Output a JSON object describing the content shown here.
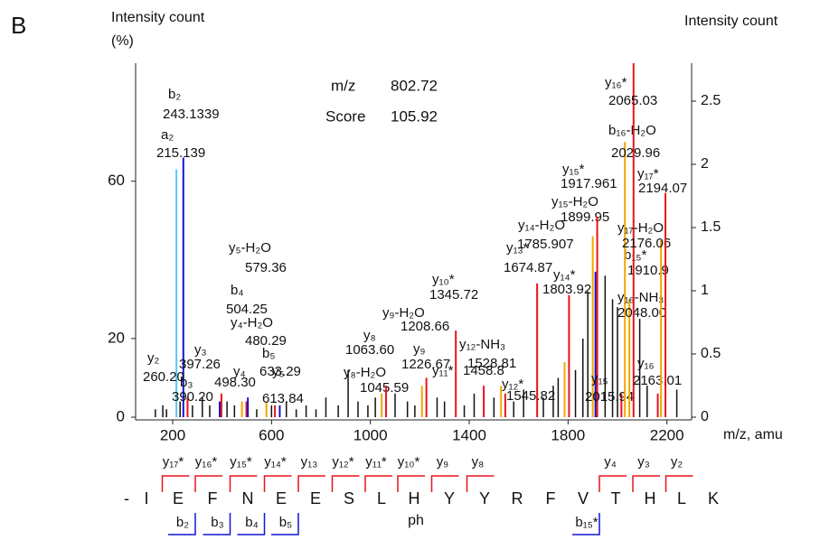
{
  "panel": "B",
  "chart_data": {
    "type": "stem",
    "ylabel": [
      "Intensity count",
      "(%)"
    ],
    "y2label": "Intensity count",
    "xlabel": "m/z, amu",
    "xlim": [
      50,
      2300
    ],
    "xticks": [
      200,
      600,
      1000,
      1400,
      1800,
      2200
    ],
    "ylim": [
      0,
      90
    ],
    "yticks": [
      0,
      20,
      60
    ],
    "y2lim": [
      0,
      2.8
    ],
    "y2ticks": [
      0,
      0.5,
      1,
      1.5,
      2,
      2.5
    ],
    "precursor": {
      "mz_label": "m/z",
      "mz": 802.72,
      "score_label": "Score",
      "score": 105.92
    },
    "peaks": [
      {
        "ion": "a₂",
        "mz": 215.139,
        "intensity": 63,
        "color": "#5ac8f0"
      },
      {
        "ion": "b₂",
        "mz": 243.1339,
        "intensity": 66,
        "color": "#1414d4"
      },
      {
        "ion": "y₂",
        "mz": {
          "value": 260.2,
          "label": "260.20"
        },
        "intensity": 5,
        "color": "#e8141b"
      },
      {
        "ion": "b₃",
        "mz": {
          "value": 390.2,
          "label": "390.20"
        },
        "intensity": 4,
        "color": "#1414d4"
      },
      {
        "ion": "y₃",
        "mz": 397.26,
        "intensity": 6,
        "color": "#e8141b"
      },
      {
        "ion": "y₄-H₂O",
        "mz": 480.29,
        "intensity": 4,
        "color": "#f0a800"
      },
      {
        "ion": "y₄",
        "mz": {
          "value": 498.3,
          "label": "498.30"
        },
        "intensity": 4,
        "color": "#e8141b"
      },
      {
        "ion": "b₄",
        "mz": 504.25,
        "intensity": 5,
        "color": "#1414d4"
      },
      {
        "ion": "y₅-H₂O",
        "mz": 579.36,
        "intensity": 4,
        "color": "#f0a800"
      },
      {
        "ion": "y₅",
        "mz": 613.84,
        "intensity": 3,
        "color": "#e8141b"
      },
      {
        "ion": "b₅",
        "mz": 633.29,
        "intensity": 3,
        "color": "#1414d4"
      },
      {
        "ion": "y₈-H₂O",
        "mz": 1045.59,
        "intensity": 6,
        "color": "#f0a800"
      },
      {
        "ion": "y₈",
        "mz": {
          "value": 1063.6,
          "label": "1063.60"
        },
        "intensity": 8,
        "color": "#e8141b"
      },
      {
        "ion": "y₉-H₂O",
        "mz": 1208.66,
        "intensity": 8,
        "color": "#f0a800"
      },
      {
        "ion": "y₉",
        "mz": 1226.67,
        "intensity": 10,
        "color": "#e8141b"
      },
      {
        "ion": "y₁₀*",
        "mz": 1345.72,
        "intensity": 22,
        "color": "#e8141b"
      },
      {
        "ion": "y₁₁*",
        "mz": 1458.8,
        "intensity": 8,
        "color": "#e8141b"
      },
      {
        "ion": "y₁₂-NH₃",
        "mz": 1528.81,
        "intensity": 8,
        "color": "#f0a800"
      },
      {
        "ion": "y₁₂*",
        "mz": 1545.82,
        "intensity": 6,
        "color": "#e8141b"
      },
      {
        "ion": "y₁₃*",
        "mz": 1674.87,
        "intensity": 34,
        "color": "#e8141b"
      },
      {
        "ion": "y₁₄-H₂O",
        "mz": 1785.907,
        "intensity": 14,
        "color": "#f0a800"
      },
      {
        "ion": "y₁₄*",
        "mz": 1803.92,
        "intensity": 31,
        "color": "#e8141b"
      },
      {
        "ion": "y₁₅-H₂O",
        "mz": 1899.95,
        "intensity": 46,
        "color": "#f0a800"
      },
      {
        "ion": "b₁₅*",
        "mz": 1910.9,
        "intensity": 37,
        "color": "#1414d4"
      },
      {
        "ion": "y₁₅*",
        "mz": 1917.961,
        "intensity": 51,
        "color": "#e8141b"
      },
      {
        "ion": "y₁₅",
        "mz": 2015.94,
        "intensity": 6,
        "color": "#e8141b"
      },
      {
        "ion": "b₁₆-H₂O",
        "mz": 2029.96,
        "intensity": 70,
        "color": "#f0a800"
      },
      {
        "ion": "y₁₆-NH₃",
        "mz": {
          "value": 2048,
          "label": "2048.00"
        },
        "intensity": 30,
        "color": "#f0a800"
      },
      {
        "ion": "y₁₆*",
        "mz": 2065.03,
        "intensity": 90,
        "color": "#e8141b"
      },
      {
        "ion": "y₁₆",
        "mz": 2163.01,
        "intensity": 6,
        "color": "#e8141b"
      },
      {
        "ion": "y₁₇-H₂O",
        "mz": 2176.06,
        "intensity": 45,
        "color": "#f0a800"
      },
      {
        "ion": "y₁₇*",
        "mz": 2194.07,
        "intensity": 57,
        "color": "#e8141b"
      }
    ],
    "noise": {
      "color": "#111",
      "x": [
        130,
        160,
        175,
        230,
        280,
        320,
        350,
        420,
        450,
        540,
        600,
        660,
        700,
        740,
        780,
        820,
        870,
        910,
        950,
        990,
        1020,
        1100,
        1150,
        1180,
        1270,
        1300,
        1380,
        1420,
        1500,
        1580,
        1620,
        1700,
        1740,
        1760,
        1830,
        1860,
        1880,
        1950,
        1980,
        2000,
        2090,
        2120,
        2240
      ],
      "values": [
        2,
        3,
        2,
        4,
        3,
        5,
        3,
        4,
        3,
        2,
        3,
        4,
        2,
        3,
        2,
        5,
        3,
        12,
        4,
        3,
        5,
        6,
        4,
        3,
        5,
        4,
        3,
        6,
        5,
        4,
        7,
        5,
        8,
        10,
        12,
        20,
        32,
        36,
        30,
        28,
        25,
        8,
        7
      ]
    },
    "sequence": [
      "-",
      "I",
      "E",
      "F",
      "N",
      "E",
      "E",
      "S",
      "L",
      "H",
      "Y",
      "Y",
      "R",
      "F",
      "V",
      "T",
      "H",
      "L",
      "K"
    ],
    "modification": "ph",
    "y_fragments": [
      "y₁₇*",
      "y₁₆*",
      "y₁₅*",
      "y₁₄*",
      "y₁₃",
      "y₁₂*",
      "y₁₁*",
      "y₁₀*",
      "y₉",
      "y₈",
      "y₄",
      "y₃",
      "y₂"
    ],
    "b_fragments": [
      "b₂",
      "b₃",
      "b₄",
      "b₅",
      "b₁₅*"
    ]
  }
}
